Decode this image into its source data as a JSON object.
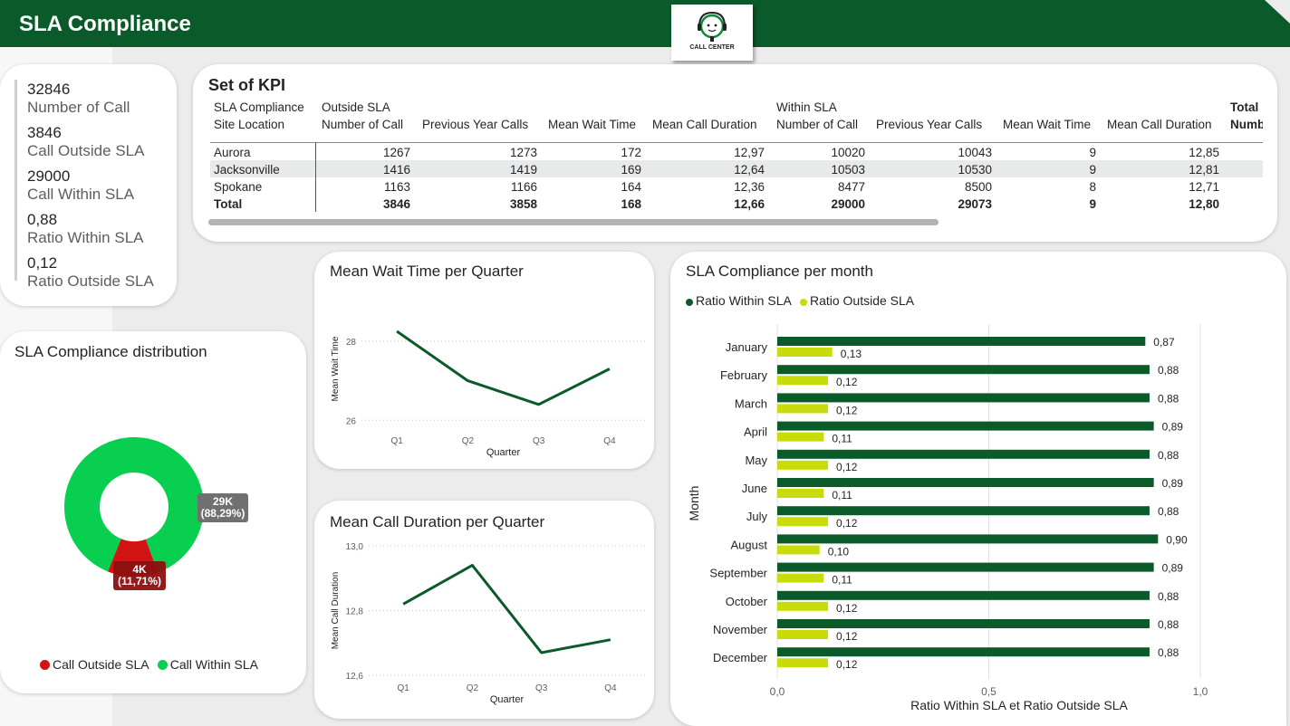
{
  "header": {
    "title": "SLA Compliance",
    "logo_text": "CALL CENTER",
    "colors": {
      "banner": "#0b5a29",
      "dark_green": "#0b5a29",
      "light_green": "#c8dc0a",
      "donut_green": "#08cf4f",
      "donut_red": "#d21414"
    }
  },
  "kpis": [
    {
      "value": "32846",
      "label": "Number of Call"
    },
    {
      "value": "3846",
      "label": "Call Outside SLA"
    },
    {
      "value": "29000",
      "label": "Call Within SLA"
    },
    {
      "value": "0,88",
      "label": "Ratio Within SLA"
    },
    {
      "value": "0,12",
      "label": "Ratio Outside SLA"
    }
  ],
  "kpi_table": {
    "title": "Set of KPI",
    "row_header_1": "SLA Compliance",
    "row_header_2": "Site Location",
    "group_outside": "Outside SLA",
    "group_within": "Within SLA",
    "group_total": "Total",
    "columns": [
      "Number of Call",
      "Previous Year Calls",
      "Mean Wait Time",
      "Mean Call Duration",
      "Number of Call",
      "Previous Year Calls",
      "Mean Wait Time",
      "Mean Call Duration",
      "Numb"
    ],
    "rows": [
      {
        "site": "Aurora",
        "cells": [
          "1267",
          "1273",
          "172",
          "12,97",
          "10020",
          "10043",
          "9",
          "12,85"
        ]
      },
      {
        "site": "Jacksonville",
        "cells": [
          "1416",
          "1419",
          "169",
          "12,64",
          "10503",
          "10530",
          "9",
          "12,81"
        ]
      },
      {
        "site": "Spokane",
        "cells": [
          "1163",
          "1166",
          "164",
          "12,36",
          "8477",
          "8500",
          "8",
          "12,71"
        ]
      }
    ],
    "total": {
      "site": "Total",
      "cells": [
        "3846",
        "3858",
        "168",
        "12,66",
        "29000",
        "29073",
        "9",
        "12,80"
      ]
    }
  },
  "distribution": {
    "title": "SLA Compliance distribution",
    "inside_label_value": "29K",
    "inside_label_pct": "(88,29%)",
    "outside_label_value": "4K",
    "outside_label_pct": "(11,71%)",
    "legend_outside": "Call Outside SLA",
    "legend_within": "Call Within SLA"
  },
  "wait_chart": {
    "title": "Mean Wait Time per Quarter"
  },
  "duration_chart": {
    "title": "Mean Call Duration per Quarter"
  },
  "monthly_chart": {
    "title": "SLA Compliance per month"
  },
  "chart_data": [
    {
      "type": "pie",
      "title": "SLA Compliance distribution",
      "categories": [
        "Call Outside SLA",
        "Call Within SLA"
      ],
      "values": [
        3846,
        29000
      ],
      "percent": [
        11.71,
        88.29
      ],
      "colors": [
        "#d21414",
        "#08cf4f"
      ],
      "legend": "bottom"
    },
    {
      "type": "line",
      "title": "Mean Wait Time per Quarter",
      "xlabel": "Quarter",
      "ylabel": "Mean Wait Time",
      "categories": [
        "Q1",
        "Q2",
        "Q3",
        "Q4"
      ],
      "values": [
        28.25,
        27.0,
        26.4,
        27.3
      ],
      "ylim": [
        25.8,
        28.8
      ],
      "yticks": [
        26,
        28
      ],
      "grid": true
    },
    {
      "type": "line",
      "title": "Mean Call Duration per Quarter",
      "xlabel": "Quarter",
      "ylabel": "Mean Call Duration",
      "categories": [
        "Q1",
        "Q2",
        "Q3",
        "Q4"
      ],
      "values": [
        12.82,
        12.94,
        12.67,
        12.71
      ],
      "ylim": [
        12.6,
        13.0
      ],
      "yticks": [
        "12,6",
        "12,8",
        "13,0"
      ],
      "grid": true
    },
    {
      "type": "bar",
      "orientation": "horizontal",
      "title": "SLA Compliance per month",
      "xlabel": "Ratio Within SLA et Ratio Outside SLA",
      "ylabel": "Month",
      "categories": [
        "January",
        "February",
        "March",
        "April",
        "May",
        "June",
        "July",
        "August",
        "September",
        "October",
        "November",
        "December"
      ],
      "series": [
        {
          "name": "Ratio Within SLA",
          "values": [
            0.87,
            0.88,
            0.88,
            0.89,
            0.88,
            0.89,
            0.88,
            0.9,
            0.89,
            0.88,
            0.88,
            0.88
          ],
          "labels": [
            "0,87",
            "0,88",
            "0,88",
            "0,89",
            "0,88",
            "0,89",
            "0,88",
            "0,90",
            "0,89",
            "0,88",
            "0,88",
            "0,88"
          ]
        },
        {
          "name": "Ratio Outside SLA",
          "values": [
            0.13,
            0.12,
            0.12,
            0.11,
            0.12,
            0.11,
            0.12,
            0.1,
            0.11,
            0.12,
            0.12,
            0.12
          ],
          "labels": [
            "0,13",
            "0,12",
            "0,12",
            "0,11",
            "0,12",
            "0,11",
            "0,12",
            "0,10",
            "0,11",
            "0,12",
            "0,12",
            "0,12"
          ]
        }
      ],
      "xlim": [
        0,
        1.0
      ],
      "xticks": [
        "0,0",
        "0,5",
        "1,0"
      ],
      "legend": "top-left",
      "grid": true
    }
  ]
}
